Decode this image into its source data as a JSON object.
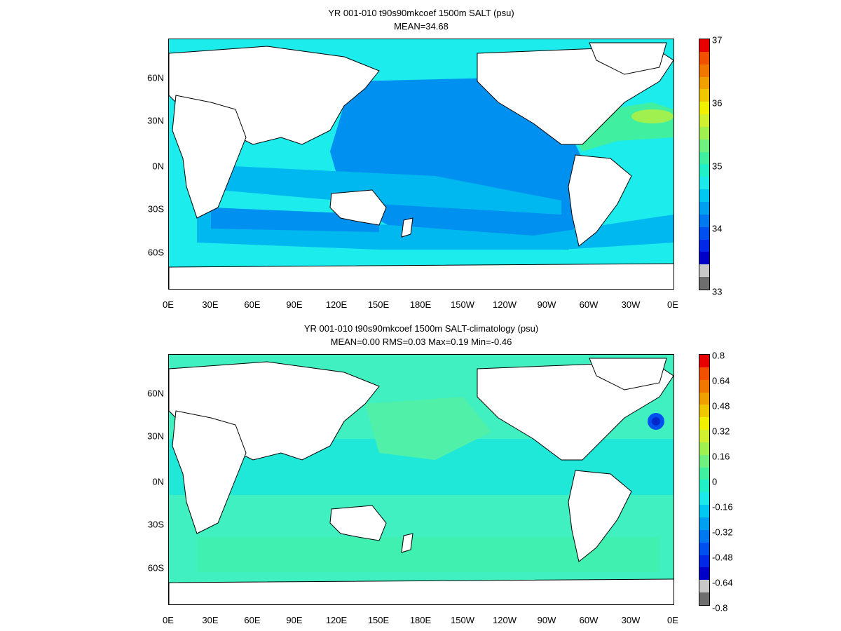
{
  "panel1": {
    "title_line1": "YR 001-010 t90s90mkcoef 1500m SALT (psu)",
    "title_line2": "MEAN=34.68",
    "colorbar_labels": [
      "37",
      "36",
      "35",
      "34",
      "33"
    ]
  },
  "panel2": {
    "title_line1": "YR 001-010 t90s90mkcoef 1500m SALT-climatology (psu)",
    "title_line2": "MEAN=0.00   RMS=0.03   Max=0.19   Min=-0.46",
    "colorbar_labels": [
      "0.8",
      "0.64",
      "0.48",
      "0.32",
      "0.16",
      "0",
      "-0.16",
      "-0.32",
      "-0.48",
      "-0.64",
      "-0.8"
    ]
  },
  "lat_labels": [
    "60N",
    "30N",
    "0N",
    "30S",
    "60S"
  ],
  "lon_labels": [
    "0E",
    "30E",
    "60E",
    "90E",
    "120E",
    "150E",
    "180E",
    "150W",
    "120W",
    "90W",
    "60W",
    "30W",
    "0E"
  ],
  "colors": {
    "cbar_bins": [
      "#6e6e6e",
      "#c8c8c8",
      "#0000c8",
      "#0028e6",
      "#0050f0",
      "#0078f0",
      "#00a0f0",
      "#00c8f0",
      "#1ceaea",
      "#20f0c8",
      "#40f0a0",
      "#70f080",
      "#a0f050",
      "#d0f030",
      "#f0f000",
      "#f0c800",
      "#f0a000",
      "#f07800",
      "#f05000",
      "#e60000"
    ],
    "ocean_panel1": "#1cecec",
    "ocean_panel2": "#1cecec",
    "land": "#ffffff"
  }
}
